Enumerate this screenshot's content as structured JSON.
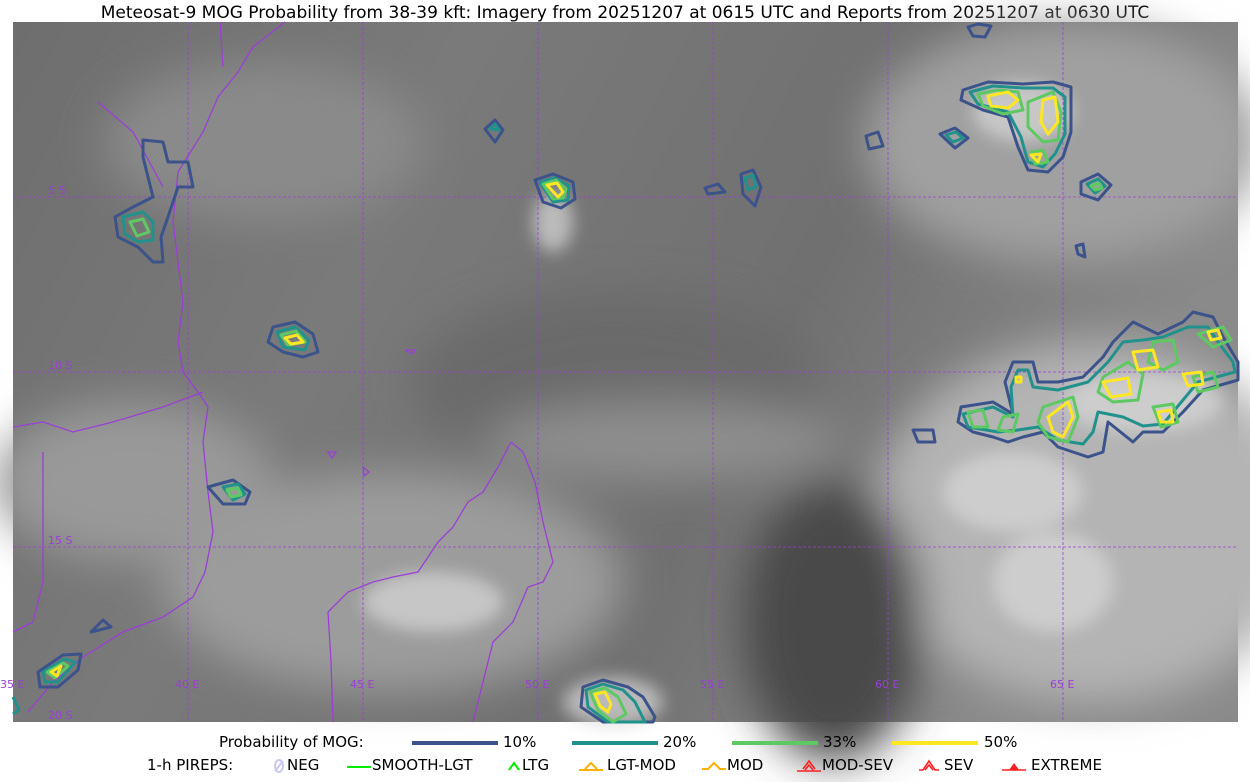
{
  "title": "Meteosat-9 MOG Probability from 38-39 kft: Imagery from 20251207 at 0615 UTC and Reports from 20251207 at 0630 UTC",
  "map": {
    "lon_labels": [
      "35 E",
      "40 E",
      "45 E",
      "50 E",
      "55 E",
      "60 E",
      "65 E"
    ],
    "lat_labels": [
      "5 S",
      "10 S",
      "15 S",
      "20 S"
    ],
    "gridline_color": "#9a3fd6",
    "coastline_color": "#9a3fd6"
  },
  "legend": {
    "probability_label": "Probability of MOG:",
    "levels": [
      {
        "label": "10%",
        "color": "#3b528b"
      },
      {
        "label": "20%",
        "color": "#21918c"
      },
      {
        "label": "33%",
        "color": "#5ec962"
      },
      {
        "label": "50%",
        "color": "#fde725"
      }
    ],
    "pireps_label": "1-h PIREPS:",
    "pireps": [
      {
        "label": "NEG",
        "color": "#c8c8f0",
        "icon": "neg-icon"
      },
      {
        "label": "SMOOTH-LGT",
        "color": "#00ee00",
        "icon": "line-icon"
      },
      {
        "label": "LTG",
        "color": "#00ee00",
        "icon": "caret-icon"
      },
      {
        "label": "LGT-MOD",
        "color": "#ffb000",
        "icon": "caret-bar-icon"
      },
      {
        "label": "MOD",
        "color": "#ffb000",
        "icon": "caret-icon"
      },
      {
        "label": "MOD-SEV",
        "color": "#ff2020",
        "icon": "double-caret-bar-icon"
      },
      {
        "label": "SEV",
        "color": "#ff2020",
        "icon": "double-caret-icon"
      },
      {
        "label": "EXTREME",
        "color": "#ff2020",
        "icon": "filled-triangle-icon"
      }
    ]
  }
}
